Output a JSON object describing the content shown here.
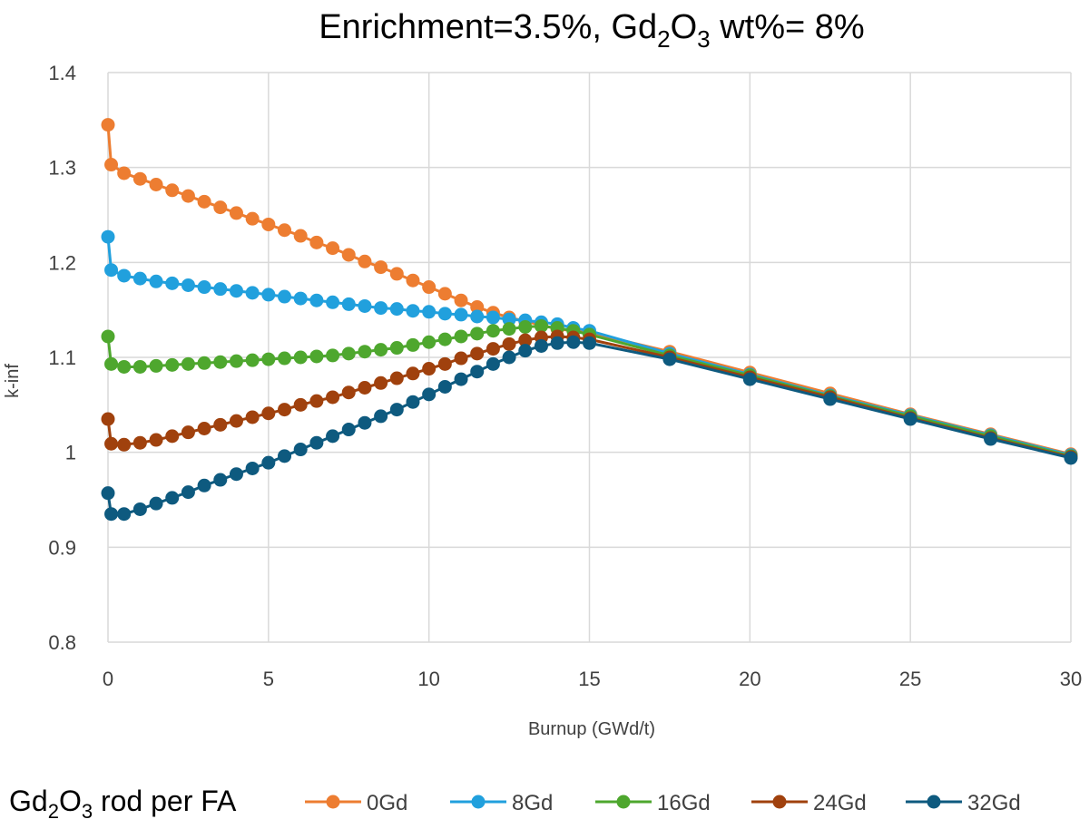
{
  "chart_data": {
    "type": "line",
    "title_parts": {
      "prefix": "Enrichment=3.5%, Gd",
      "sub1": "2",
      "mid": "O",
      "sub2": "3",
      "suffix": " wt%= 8%"
    },
    "xlabel": "Burnup (GWd/t)",
    "ylabel": "k-inf",
    "xlim": [
      0,
      30
    ],
    "ylim": [
      0.8,
      1.4
    ],
    "xticks": [
      0,
      5,
      10,
      15,
      20,
      25,
      30
    ],
    "yticks": [
      0.8,
      0.9,
      1,
      1.1,
      1.2,
      1.3,
      1.4
    ],
    "ytick_labels": [
      "0.8",
      "0.9",
      "1",
      "1.1",
      "1.2",
      "1.3",
      "1.4"
    ],
    "grid": true,
    "legend_position": "bottom",
    "legend_title_parts": {
      "prefix": "Gd",
      "sub1": "2",
      "mid": "O",
      "sub2": "3",
      "suffix": " rod per FA"
    },
    "series": [
      {
        "name": "0Gd",
        "color": "#ED7D31",
        "x": [
          0,
          0.1,
          0.5,
          1,
          1.5,
          2,
          2.5,
          3,
          3.5,
          4,
          4.5,
          5,
          5.5,
          6,
          6.5,
          7,
          7.5,
          8,
          8.5,
          9,
          9.5,
          10,
          10.5,
          11,
          11.5,
          12,
          12.5,
          13,
          13.5,
          14,
          14.5,
          15,
          17.5,
          20,
          22.5,
          25,
          27.5,
          30
        ],
        "values": [
          1.345,
          1.303,
          1.294,
          1.288,
          1.282,
          1.276,
          1.27,
          1.264,
          1.258,
          1.252,
          1.246,
          1.24,
          1.234,
          1.228,
          1.221,
          1.215,
          1.208,
          1.201,
          1.195,
          1.188,
          1.181,
          1.174,
          1.167,
          1.16,
          1.153,
          1.147,
          1.142,
          1.138,
          1.134,
          1.13,
          1.128,
          1.126,
          1.106,
          1.084,
          1.062,
          1.04,
          1.019,
          0.998
        ]
      },
      {
        "name": "8Gd",
        "color": "#21A0DD",
        "x": [
          0,
          0.1,
          0.5,
          1,
          1.5,
          2,
          2.5,
          3,
          3.5,
          4,
          4.5,
          5,
          5.5,
          6,
          6.5,
          7,
          7.5,
          8,
          8.5,
          9,
          9.5,
          10,
          10.5,
          11,
          11.5,
          12,
          12.5,
          13,
          13.5,
          14,
          14.5,
          15,
          17.5,
          20,
          22.5,
          25,
          27.5,
          30
        ],
        "values": [
          1.227,
          1.192,
          1.186,
          1.183,
          1.18,
          1.178,
          1.176,
          1.174,
          1.172,
          1.17,
          1.168,
          1.166,
          1.164,
          1.162,
          1.16,
          1.158,
          1.156,
          1.154,
          1.152,
          1.151,
          1.149,
          1.148,
          1.146,
          1.145,
          1.143,
          1.142,
          1.14,
          1.139,
          1.137,
          1.135,
          1.131,
          1.128,
          1.104,
          1.082,
          1.06,
          1.039,
          1.018,
          0.997
        ]
      },
      {
        "name": "16Gd",
        "color": "#4EA72E",
        "x": [
          0,
          0.1,
          0.5,
          1,
          1.5,
          2,
          2.5,
          3,
          3.5,
          4,
          4.5,
          5,
          5.5,
          6,
          6.5,
          7,
          7.5,
          8,
          8.5,
          9,
          9.5,
          10,
          10.5,
          11,
          11.5,
          12,
          12.5,
          13,
          13.5,
          14,
          14.5,
          15,
          17.5,
          20,
          22.5,
          25,
          27.5,
          30
        ],
        "values": [
          1.122,
          1.093,
          1.09,
          1.09,
          1.091,
          1.092,
          1.093,
          1.094,
          1.095,
          1.096,
          1.097,
          1.098,
          1.099,
          1.1,
          1.101,
          1.102,
          1.104,
          1.106,
          1.108,
          1.11,
          1.113,
          1.116,
          1.119,
          1.122,
          1.125,
          1.128,
          1.13,
          1.132,
          1.133,
          1.131,
          1.128,
          1.124,
          1.102,
          1.081,
          1.059,
          1.038,
          1.017,
          0.996
        ]
      },
      {
        "name": "24Gd",
        "color": "#A0410D",
        "x": [
          0,
          0.1,
          0.5,
          1,
          1.5,
          2,
          2.5,
          3,
          3.5,
          4,
          4.5,
          5,
          5.5,
          6,
          6.5,
          7,
          7.5,
          8,
          8.5,
          9,
          9.5,
          10,
          10.5,
          11,
          11.5,
          12,
          12.5,
          13,
          13.5,
          14,
          14.5,
          15,
          17.5,
          20,
          22.5,
          25,
          27.5,
          30
        ],
        "values": [
          1.035,
          1.009,
          1.008,
          1.01,
          1.013,
          1.017,
          1.021,
          1.025,
          1.029,
          1.033,
          1.037,
          1.041,
          1.045,
          1.05,
          1.054,
          1.058,
          1.063,
          1.068,
          1.073,
          1.078,
          1.083,
          1.088,
          1.093,
          1.099,
          1.104,
          1.109,
          1.114,
          1.118,
          1.121,
          1.122,
          1.121,
          1.119,
          1.1,
          1.079,
          1.058,
          1.036,
          1.015,
          0.995
        ]
      },
      {
        "name": "32Gd",
        "color": "#0E5A7F",
        "x": [
          0,
          0.1,
          0.5,
          1,
          1.5,
          2,
          2.5,
          3,
          3.5,
          4,
          4.5,
          5,
          5.5,
          6,
          6.5,
          7,
          7.5,
          8,
          8.5,
          9,
          9.5,
          10,
          10.5,
          11,
          11.5,
          12,
          12.5,
          13,
          13.5,
          14,
          14.5,
          15,
          17.5,
          20,
          22.5,
          25,
          27.5,
          30
        ],
        "values": [
          0.957,
          0.935,
          0.935,
          0.94,
          0.946,
          0.952,
          0.958,
          0.965,
          0.971,
          0.977,
          0.983,
          0.989,
          0.996,
          1.003,
          1.01,
          1.017,
          1.024,
          1.031,
          1.038,
          1.045,
          1.053,
          1.061,
          1.069,
          1.077,
          1.085,
          1.093,
          1.1,
          1.107,
          1.112,
          1.115,
          1.116,
          1.115,
          1.098,
          1.077,
          1.056,
          1.035,
          1.014,
          0.994
        ]
      }
    ]
  }
}
